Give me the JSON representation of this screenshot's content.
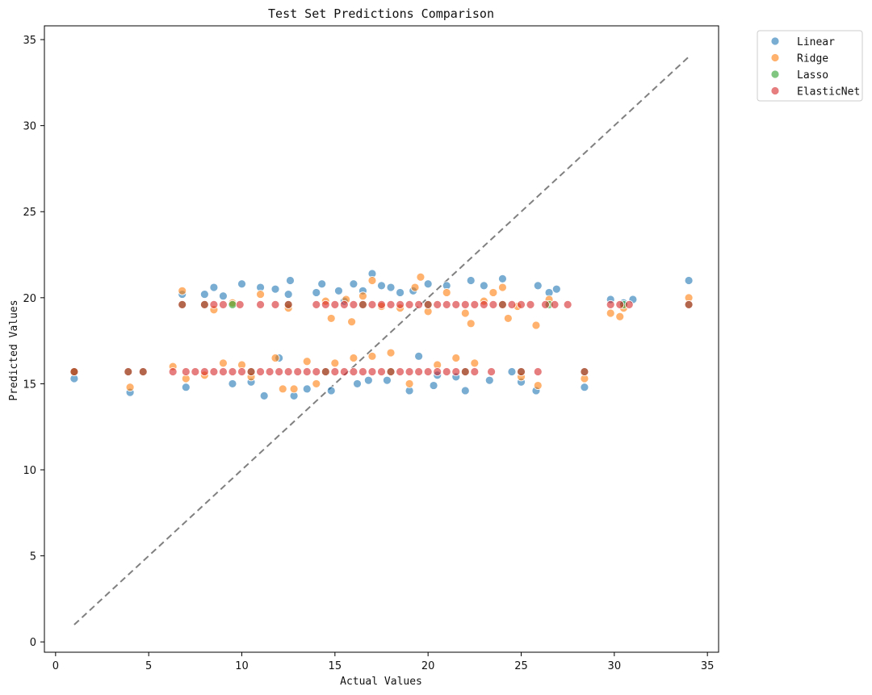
{
  "chart_data": {
    "type": "scatter",
    "title": "Test Set Predictions Comparison",
    "xlabel": "Actual Values",
    "ylabel": "Predicted Values",
    "xlim": [
      -0.6,
      35.6
    ],
    "ylim": [
      -0.6,
      35.8
    ],
    "xticks": [
      0,
      5,
      10,
      15,
      20,
      25,
      30,
      35
    ],
    "yticks": [
      0,
      5,
      10,
      15,
      20,
      25,
      30,
      35
    ],
    "grid": false,
    "legend_position": "outside top-right",
    "reference_line": {
      "style": "dashed",
      "color": "#808080",
      "from": [
        1,
        1
      ],
      "to": [
        34,
        34
      ]
    },
    "series": [
      {
        "name": "Linear",
        "color": "#1f77b4",
        "points": [
          [
            1.0,
            15.3
          ],
          [
            4.0,
            14.5
          ],
          [
            6.8,
            20.2
          ],
          [
            7.0,
            14.8
          ],
          [
            8.0,
            20.2
          ],
          [
            8.5,
            20.6
          ],
          [
            9.0,
            20.1
          ],
          [
            9.5,
            15.0
          ],
          [
            10.0,
            20.8
          ],
          [
            10.5,
            15.1
          ],
          [
            11.0,
            20.6
          ],
          [
            11.2,
            14.3
          ],
          [
            11.8,
            20.5
          ],
          [
            12.0,
            16.5
          ],
          [
            12.5,
            20.2
          ],
          [
            12.6,
            21.0
          ],
          [
            12.8,
            14.3
          ],
          [
            13.5,
            14.7
          ],
          [
            14.0,
            20.3
          ],
          [
            14.3,
            20.8
          ],
          [
            14.8,
            14.6
          ],
          [
            15.2,
            20.4
          ],
          [
            15.5,
            19.8
          ],
          [
            16.0,
            20.8
          ],
          [
            16.2,
            15.0
          ],
          [
            16.5,
            20.4
          ],
          [
            16.8,
            15.2
          ],
          [
            17.0,
            21.4
          ],
          [
            17.5,
            20.7
          ],
          [
            17.8,
            15.2
          ],
          [
            18.0,
            20.6
          ],
          [
            18.5,
            20.3
          ],
          [
            19.0,
            14.6
          ],
          [
            19.2,
            20.4
          ],
          [
            19.5,
            16.6
          ],
          [
            20.0,
            20.8
          ],
          [
            20.3,
            14.9
          ],
          [
            20.5,
            15.5
          ],
          [
            21.0,
            20.7
          ],
          [
            21.5,
            15.4
          ],
          [
            22.0,
            14.6
          ],
          [
            22.3,
            21.0
          ],
          [
            23.0,
            20.7
          ],
          [
            23.3,
            15.2
          ],
          [
            24.0,
            21.1
          ],
          [
            24.5,
            15.7
          ],
          [
            25.0,
            15.1
          ],
          [
            25.8,
            14.6
          ],
          [
            25.9,
            20.7
          ],
          [
            26.5,
            20.3
          ],
          [
            26.9,
            20.5
          ],
          [
            28.4,
            14.8
          ],
          [
            29.8,
            19.9
          ],
          [
            30.5,
            19.7
          ],
          [
            31.0,
            19.9
          ],
          [
            34.0,
            21.0
          ]
        ]
      },
      {
        "name": "Ridge",
        "color": "#ff7f0e",
        "points": [
          [
            1.0,
            15.7
          ],
          [
            4.0,
            14.8
          ],
          [
            6.3,
            16.0
          ],
          [
            6.8,
            20.4
          ],
          [
            7.0,
            15.3
          ],
          [
            8.0,
            15.5
          ],
          [
            8.5,
            19.3
          ],
          [
            9.0,
            16.2
          ],
          [
            9.5,
            19.7
          ],
          [
            10.0,
            16.1
          ],
          [
            10.5,
            15.4
          ],
          [
            11.0,
            20.2
          ],
          [
            11.8,
            16.5
          ],
          [
            12.2,
            14.7
          ],
          [
            12.5,
            19.4
          ],
          [
            12.8,
            14.7
          ],
          [
            13.5,
            16.3
          ],
          [
            14.0,
            15.0
          ],
          [
            14.5,
            19.8
          ],
          [
            14.8,
            18.8
          ],
          [
            15.0,
            16.2
          ],
          [
            15.6,
            19.9
          ],
          [
            15.9,
            18.6
          ],
          [
            16.0,
            16.5
          ],
          [
            16.5,
            20.1
          ],
          [
            17.0,
            16.6
          ],
          [
            17.0,
            21.0
          ],
          [
            17.5,
            19.5
          ],
          [
            18.0,
            16.8
          ],
          [
            18.5,
            19.4
          ],
          [
            19.0,
            15.0
          ],
          [
            19.3,
            20.6
          ],
          [
            19.6,
            21.2
          ],
          [
            20.0,
            19.2
          ],
          [
            20.5,
            16.1
          ],
          [
            21.0,
            20.3
          ],
          [
            21.5,
            16.5
          ],
          [
            22.0,
            19.1
          ],
          [
            22.3,
            18.5
          ],
          [
            22.5,
            16.2
          ],
          [
            23.0,
            19.8
          ],
          [
            23.5,
            20.3
          ],
          [
            24.0,
            20.6
          ],
          [
            24.3,
            18.8
          ],
          [
            24.8,
            19.5
          ],
          [
            25.0,
            15.4
          ],
          [
            25.8,
            18.4
          ],
          [
            25.9,
            14.9
          ],
          [
            26.5,
            19.9
          ],
          [
            28.4,
            15.3
          ],
          [
            29.8,
            19.1
          ],
          [
            30.3,
            18.9
          ],
          [
            30.5,
            19.4
          ],
          [
            34.0,
            20.0
          ]
        ]
      },
      {
        "name": "Lasso",
        "color": "#2ca02c",
        "points": [
          [
            1.0,
            15.7
          ],
          [
            3.9,
            15.7
          ],
          [
            4.7,
            15.7
          ],
          [
            6.8,
            19.6
          ],
          [
            8.0,
            19.6
          ],
          [
            9.5,
            19.6
          ],
          [
            10.5,
            15.7
          ],
          [
            12.5,
            19.6
          ],
          [
            14.5,
            15.7
          ],
          [
            16.5,
            19.6
          ],
          [
            18.0,
            15.7
          ],
          [
            20.0,
            19.6
          ],
          [
            22.0,
            15.7
          ],
          [
            24.0,
            19.6
          ],
          [
            25.0,
            15.7
          ],
          [
            26.5,
            19.6
          ],
          [
            28.4,
            15.7
          ],
          [
            30.5,
            19.6
          ],
          [
            34.0,
            19.6
          ]
        ]
      },
      {
        "name": "ElasticNet",
        "color": "#d62728",
        "points": [
          [
            1.0,
            15.7
          ],
          [
            3.9,
            15.7
          ],
          [
            4.7,
            15.7
          ],
          [
            6.3,
            15.7
          ],
          [
            6.8,
            19.6
          ],
          [
            7.0,
            15.7
          ],
          [
            7.5,
            15.7
          ],
          [
            8.0,
            19.6
          ],
          [
            8.0,
            15.7
          ],
          [
            8.5,
            15.7
          ],
          [
            8.5,
            19.6
          ],
          [
            9.0,
            15.7
          ],
          [
            9.0,
            19.6
          ],
          [
            9.5,
            15.7
          ],
          [
            9.9,
            19.6
          ],
          [
            10.0,
            15.7
          ],
          [
            10.5,
            15.7
          ],
          [
            11.0,
            19.6
          ],
          [
            11.0,
            15.7
          ],
          [
            11.8,
            19.6
          ],
          [
            11.5,
            15.7
          ],
          [
            12.0,
            15.7
          ],
          [
            12.5,
            19.6
          ],
          [
            12.5,
            15.7
          ],
          [
            13.0,
            15.7
          ],
          [
            13.5,
            15.7
          ],
          [
            14.0,
            19.6
          ],
          [
            14.0,
            15.7
          ],
          [
            14.5,
            19.6
          ],
          [
            14.5,
            15.7
          ],
          [
            15.0,
            19.6
          ],
          [
            15.0,
            15.7
          ],
          [
            15.5,
            19.6
          ],
          [
            15.5,
            15.7
          ],
          [
            16.0,
            19.6
          ],
          [
            16.0,
            15.7
          ],
          [
            16.5,
            19.6
          ],
          [
            16.5,
            15.7
          ],
          [
            17.0,
            19.6
          ],
          [
            17.0,
            15.7
          ],
          [
            17.5,
            19.6
          ],
          [
            17.5,
            15.7
          ],
          [
            18.0,
            19.6
          ],
          [
            18.0,
            15.7
          ],
          [
            18.5,
            19.6
          ],
          [
            18.5,
            15.7
          ],
          [
            19.0,
            19.6
          ],
          [
            19.0,
            15.7
          ],
          [
            19.5,
            19.6
          ],
          [
            19.5,
            15.7
          ],
          [
            20.0,
            19.6
          ],
          [
            20.0,
            15.7
          ],
          [
            20.5,
            19.6
          ],
          [
            20.5,
            15.7
          ],
          [
            21.0,
            19.6
          ],
          [
            21.0,
            15.7
          ],
          [
            21.5,
            19.6
          ],
          [
            21.5,
            15.7
          ],
          [
            22.0,
            19.6
          ],
          [
            22.0,
            15.7
          ],
          [
            22.5,
            19.6
          ],
          [
            22.5,
            15.7
          ],
          [
            23.0,
            19.6
          ],
          [
            23.4,
            15.7
          ],
          [
            23.5,
            19.6
          ],
          [
            24.0,
            19.6
          ],
          [
            24.5,
            19.6
          ],
          [
            25.0,
            19.6
          ],
          [
            25.0,
            15.7
          ],
          [
            25.5,
            19.6
          ],
          [
            25.9,
            15.7
          ],
          [
            26.3,
            19.6
          ],
          [
            26.8,
            19.6
          ],
          [
            27.5,
            19.6
          ],
          [
            28.4,
            15.7
          ],
          [
            29.8,
            19.6
          ],
          [
            30.3,
            19.6
          ],
          [
            30.8,
            19.6
          ],
          [
            34.0,
            19.6
          ]
        ]
      }
    ]
  }
}
